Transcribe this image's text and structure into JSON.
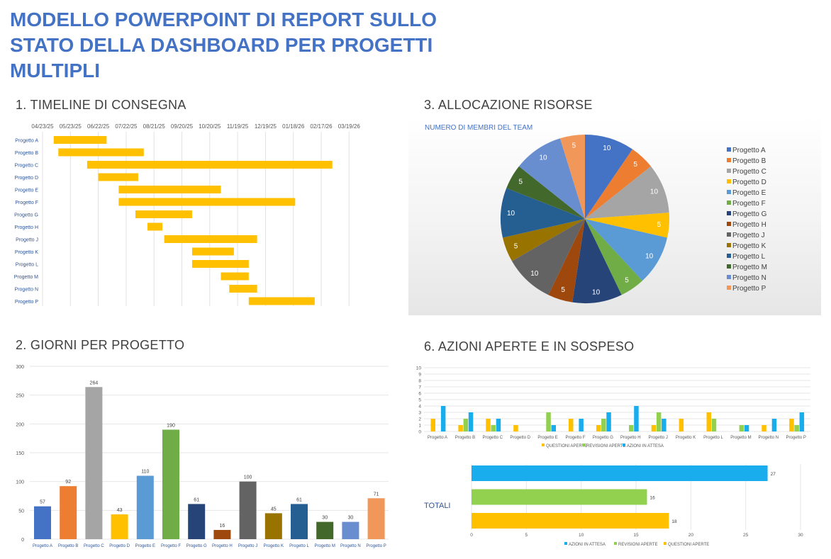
{
  "title": "MODELLO POWERPOINT DI REPORT SULLO STATO DELLA DASHBOARD PER PROGETTI MULTIPLI",
  "sections": {
    "timeline": "1. TIMELINE DI CONSEGNA",
    "days": "2. GIORNI PER PROGETTO",
    "resources": "3. ALLOCAZIONE RISORSE",
    "actions": "6. AZIONI APERTE E IN SOSPESO"
  },
  "colors": {
    "title": "#4472C4",
    "gantt_bar": "#FFC000",
    "questioni": "#FFC000",
    "revisioni": "#92D050",
    "azioni": "#1AADEE"
  },
  "chart_data": [
    {
      "type": "bar",
      "subtype": "gantt",
      "tick_labels": [
        "04/23/25",
        "05/23/25",
        "06/22/25",
        "07/22/25",
        "08/21/25",
        "09/20/25",
        "10/20/25",
        "11/19/25",
        "12/19/25",
        "01/18/26",
        "02/17/26",
        "03/19/26"
      ],
      "xlim": [
        "2025-04-23",
        "2026-03-19"
      ],
      "categories": [
        "Progetto A",
        "Progetto B",
        "Progetto C",
        "Progetto D",
        "Progetto E",
        "Progetto F",
        "Progetto G",
        "Progetto H",
        "Progetto J",
        "Progetto K",
        "Progetto L",
        "Progetto M",
        "Progetto N",
        "Progetto P"
      ],
      "start": [
        "2025-05-05",
        "2025-05-10",
        "2025-06-10",
        "2025-06-22",
        "2025-07-14",
        "2025-07-14",
        "2025-08-01",
        "2025-08-14",
        "2025-09-01",
        "2025-10-01",
        "2025-10-01",
        "2025-11-01",
        "2025-11-10",
        "2025-12-01"
      ],
      "end": [
        "2025-07-01",
        "2025-08-10",
        "2026-03-01",
        "2025-08-04",
        "2025-11-01",
        "2026-01-20",
        "2025-10-01",
        "2025-08-30",
        "2025-12-10",
        "2025-11-15",
        "2025-12-01",
        "2025-12-01",
        "2025-12-10",
        "2026-02-10"
      ],
      "grid": true
    },
    {
      "type": "bar",
      "categories": [
        "Progetto A",
        "Progetto B",
        "Progetto C",
        "Progetto D",
        "Progetto E",
        "Progetto F",
        "Progetto G",
        "Progetto H",
        "Progetto J",
        "Progetto K",
        "Progetto L",
        "Progetto M",
        "Progetto N",
        "Progetto P"
      ],
      "values": [
        57,
        92,
        264,
        43,
        110,
        190,
        61,
        16,
        100,
        45,
        61,
        30,
        30,
        71
      ],
      "colors": [
        "#4472C4",
        "#ED7D31",
        "#A5A5A5",
        "#FFC000",
        "#5B9BD5",
        "#70AD47",
        "#264478",
        "#9E480E",
        "#636363",
        "#997300",
        "#255E91",
        "#43682B",
        "#698ED0",
        "#F1975A"
      ],
      "ylim": [
        0,
        300
      ],
      "yticks": [
        0,
        50,
        100,
        150,
        200,
        250,
        300
      ],
      "grid": true
    },
    {
      "type": "pie",
      "title": "NUMERO DI MEMBRI DEL TEAM",
      "labels": [
        "Progetto A",
        "Progetto B",
        "Progetto C",
        "Progetto D",
        "Progetto E",
        "Progetto F",
        "Progetto G",
        "Progetto H",
        "Progetto J",
        "Progetto K",
        "Progetto L",
        "Progetto M",
        "Progetto N",
        "Progetto P"
      ],
      "values": [
        10,
        5,
        10,
        5,
        10,
        5,
        10,
        5,
        10,
        5,
        10,
        5,
        10,
        5
      ],
      "colors": [
        "#4472C4",
        "#ED7D31",
        "#A5A5A5",
        "#FFC000",
        "#5B9BD5",
        "#70AD47",
        "#264478",
        "#9E480E",
        "#636363",
        "#997300",
        "#255E91",
        "#43682B",
        "#698ED0",
        "#F1975A"
      ],
      "legend": "right"
    },
    {
      "type": "bar",
      "categories": [
        "Progetto A",
        "Progetto B",
        "Progetto C",
        "Progetto D",
        "Progetto E",
        "Progetto F",
        "Progetto G",
        "Progetto H",
        "Progetto J",
        "Progetto K",
        "Progetto L",
        "Progetto M",
        "Progetto N",
        "Progetto P"
      ],
      "series": [
        {
          "name": "QUESTIONI APERTE",
          "color": "#FFC000",
          "values": [
            2,
            1,
            2,
            1,
            0,
            2,
            1,
            0,
            1,
            2,
            3,
            0,
            1,
            2
          ]
        },
        {
          "name": "REVISIONI APERTE",
          "color": "#92D050",
          "values": [
            0,
            2,
            1,
            0,
            3,
            0,
            2,
            1,
            3,
            0,
            2,
            1,
            0,
            1
          ]
        },
        {
          "name": "AZIONI IN ATTESA",
          "color": "#1AADEE",
          "values": [
            4,
            3,
            2,
            0,
            1,
            2,
            3,
            4,
            2,
            0,
            0,
            1,
            2,
            3
          ]
        }
      ],
      "ylim": [
        0,
        10
      ],
      "yticks": [
        0,
        1,
        2,
        3,
        4,
        5,
        6,
        7,
        8,
        9,
        10
      ],
      "legend": "bottom",
      "grid": true
    },
    {
      "type": "bar",
      "orientation": "horizontal",
      "category": "TOTALI",
      "series": [
        {
          "name": "AZIONI IN ATTESA",
          "color": "#1AADEE",
          "value": 27
        },
        {
          "name": "REVISIONI APERTE",
          "color": "#92D050",
          "value": 16
        },
        {
          "name": "QUESTIONI APERTE",
          "color": "#FFC000",
          "value": 18
        }
      ],
      "xlim": [
        0,
        30
      ],
      "xticks": [
        0,
        5,
        10,
        15,
        20,
        25,
        30
      ],
      "legend": "bottom",
      "grid": true
    }
  ]
}
